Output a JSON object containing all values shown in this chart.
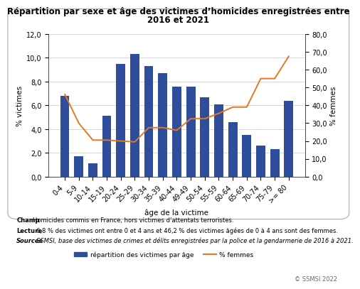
{
  "title_line1": "Répartition par sexe et âge des victimes d’homicides enregistrées entre",
  "title_line2": "2016 et 2021",
  "categories": [
    "0-4",
    "5-9",
    "10-14",
    "15-19",
    "20-24",
    "25-29",
    "30-34",
    "35-39",
    "40-44",
    "49-49",
    "50-54",
    "55-59",
    "60-64",
    "65-69",
    "70-74",
    "75-79",
    ">= 80"
  ],
  "bar_values": [
    6.8,
    1.7,
    1.1,
    5.1,
    9.5,
    10.3,
    9.3,
    8.7,
    7.6,
    7.6,
    6.7,
    6.1,
    4.6,
    3.5,
    2.6,
    2.3,
    6.4
  ],
  "line_values": [
    46.2,
    30.0,
    20.5,
    20.5,
    20.0,
    19.5,
    27.5,
    27.5,
    26.0,
    32.5,
    32.5,
    35.5,
    39.0,
    39.0,
    55.0,
    55.0,
    67.5
  ],
  "bar_color": "#2E4D9B",
  "line_color": "#E87722",
  "ylabel_left": "% victimes",
  "ylabel_right": "% femmes",
  "xlabel": "âge de la victime",
  "ylim_left": [
    0,
    12
  ],
  "ylim_right": [
    0,
    80
  ],
  "yticks_left": [
    0.0,
    2.0,
    4.0,
    6.0,
    8.0,
    10.0,
    12.0
  ],
  "yticks_right": [
    0.0,
    10.0,
    20.0,
    30.0,
    40.0,
    50.0,
    60.0,
    70.0,
    80.0
  ],
  "legend_bar_label": "répartition des victimes par âge",
  "legend_line_label": "% femmes",
  "champ_label": "Champ",
  "champ_rest": " : Homicides commis en France, hors victimes d’attentats terroristes.",
  "lecture_label": "Lecture",
  "lecture_rest": " : 6,8 % des victimes ont entre 0 et 4 ans et 46,2 % des victimes âgées de 0 à 4 ans sont des femmes.",
  "sources_label": "Sources",
  "sources_rest": " : SSMSI, base des victimes de crimes et délits enregistrées par la police et la gendarmerie de 2016 à 2021.",
  "copyright_text": "© SSMSI 2022",
  "background_color": "#FFFFFF",
  "plot_bg_color": "#FFFFFF",
  "grid_color": "#C8C8C8",
  "title_fontsize": 8.5,
  "axis_fontsize": 7.5,
  "tick_fontsize": 7.0,
  "legend_fontsize": 6.5,
  "annot_fontsize": 6.0
}
